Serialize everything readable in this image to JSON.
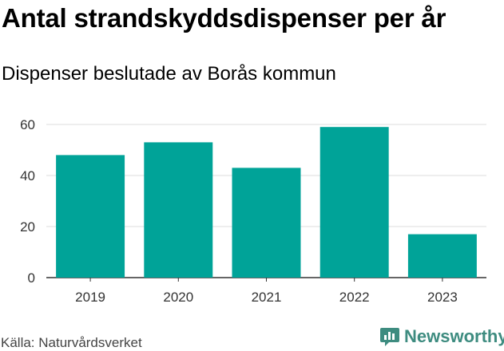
{
  "title": "Antal strandskyddsdispenser per år",
  "subtitle": "Dispenser beslutade av Borås kommun",
  "source": "Källa: Naturvårdsverket",
  "brand": "Newsworthy",
  "colors": {
    "bar": "#00a398",
    "grid": "#dddddd",
    "axis": "#333333",
    "brand": "#3e8c80"
  },
  "chart_data": {
    "type": "bar",
    "title": "Antal strandskyddsdispenser per år",
    "subtitle": "Dispenser beslutade av Borås kommun",
    "categories": [
      "2019",
      "2020",
      "2021",
      "2022",
      "2023"
    ],
    "values": [
      48,
      53,
      43,
      59,
      17
    ],
    "xlabel": "",
    "ylabel": "",
    "ylim": [
      0,
      60
    ],
    "yticks": [
      0,
      20,
      40,
      60
    ],
    "grid": true,
    "legend": "none"
  }
}
